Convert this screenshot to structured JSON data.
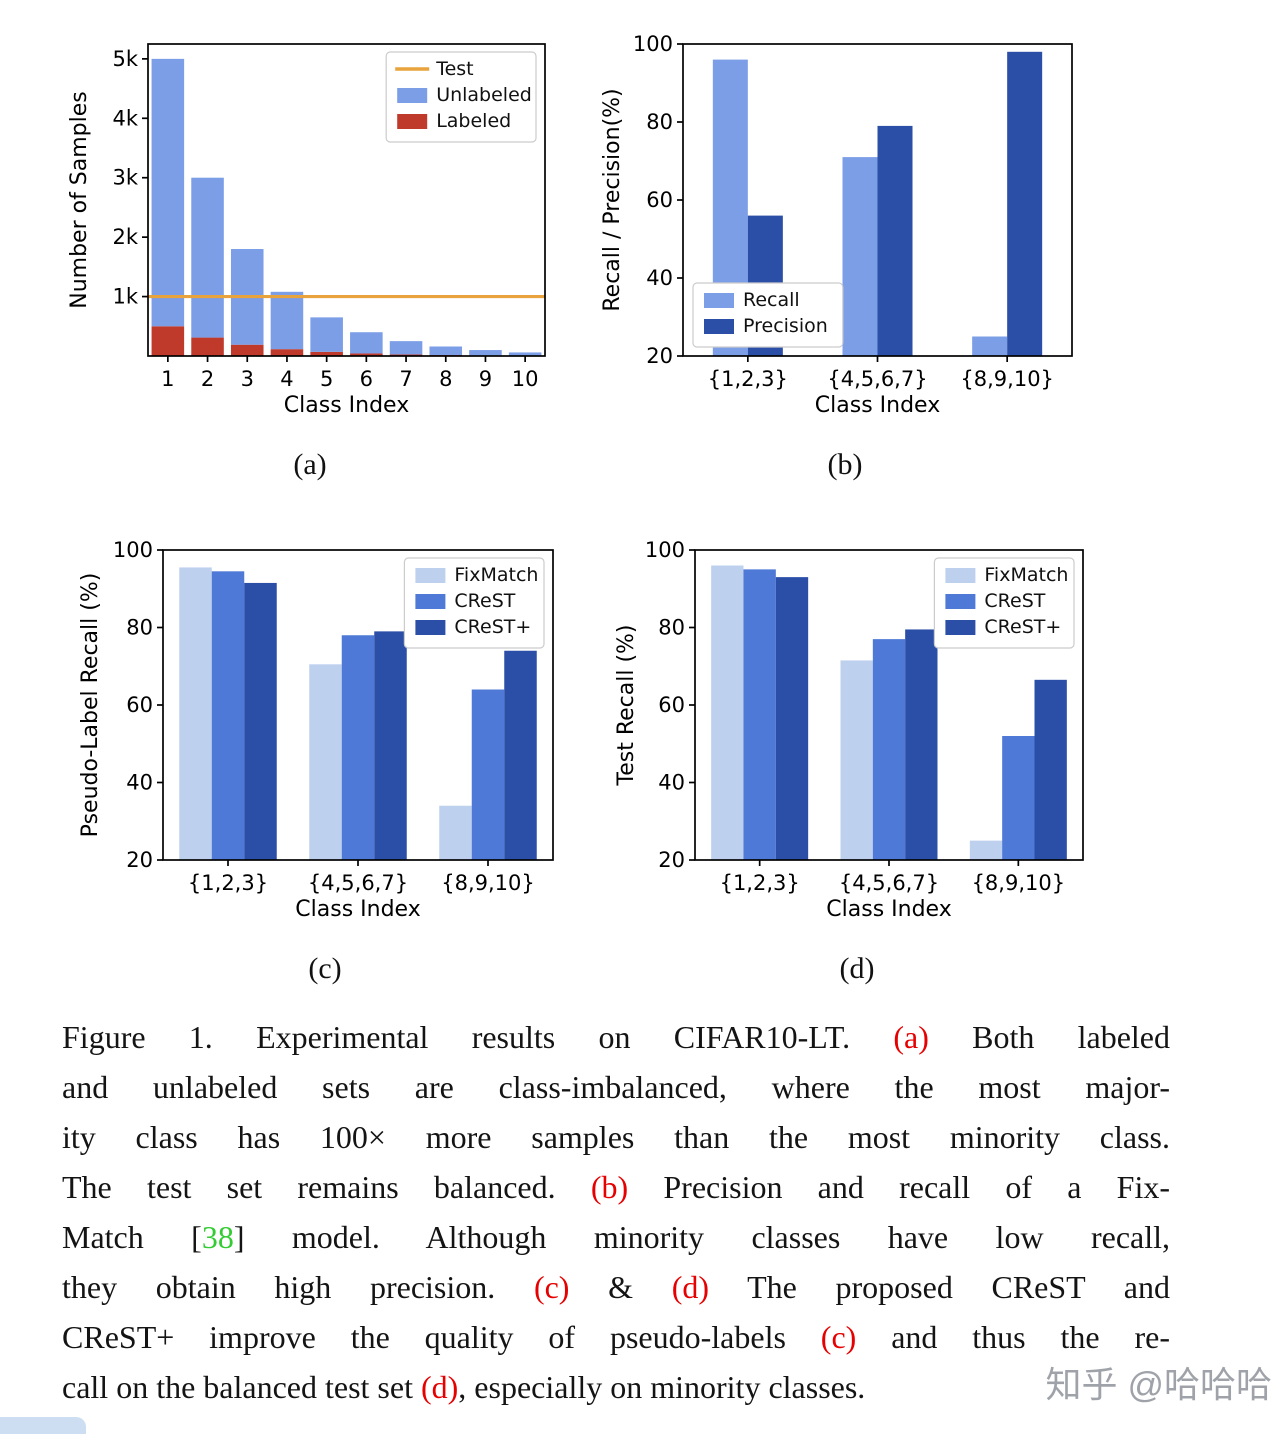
{
  "palette": {
    "pale_blue": "#bdd0ee",
    "light_blue": "#7b9ee7",
    "blue": "#4f79d6",
    "dark_blue": "#2b4fa7",
    "red": "#c03a2b",
    "orange": "#e8a33c",
    "axis": "#000000",
    "legend_border": "#cccccc"
  },
  "chart_data": [
    {
      "id": "a",
      "panel_label": "(a)",
      "type": "bar",
      "bar_mode": "stacked",
      "xlabel": "Class Index",
      "ylabel": "Number of Samples",
      "categories": [
        "1",
        "2",
        "3",
        "4",
        "5",
        "6",
        "7",
        "8",
        "9",
        "10"
      ],
      "ylim": [
        0,
        5250
      ],
      "yticks": [
        {
          "v": 1000,
          "label": "1k"
        },
        {
          "v": 2000,
          "label": "2k"
        },
        {
          "v": 3000,
          "label": "3k"
        },
        {
          "v": 4000,
          "label": "4k"
        },
        {
          "v": 5000,
          "label": "5k"
        }
      ],
      "bar_frac": 0.82,
      "series": [
        {
          "name": "Labeled",
          "color": "red",
          "values": [
            500,
            310,
            190,
            115,
            70,
            43,
            26,
            16,
            10,
            6
          ]
        },
        {
          "name": "Unlabeled",
          "color": "light_blue",
          "values": [
            4500,
            2690,
            1610,
            965,
            580,
            357,
            224,
            144,
            90,
            54
          ]
        }
      ],
      "hline": {
        "name": "Test",
        "color": "orange",
        "value": 1000
      },
      "legend": {
        "pos": "tr",
        "entries": [
          {
            "label": "Test",
            "swatch": "line",
            "color": "orange"
          },
          {
            "label": "Unlabeled",
            "swatch": "rect",
            "color": "light_blue"
          },
          {
            "label": "Labeled",
            "swatch": "rect",
            "color": "red"
          }
        ]
      }
    },
    {
      "id": "b",
      "panel_label": "(b)",
      "type": "bar",
      "bar_mode": "grouped",
      "xlabel": "Class Index",
      "ylabel": "Recall / Precision(%)",
      "categories": [
        "{1,2,3}",
        "{4,5,6,7}",
        "{8,9,10}"
      ],
      "ylim": [
        20,
        100
      ],
      "yticks": [
        {
          "v": 20,
          "label": "20"
        },
        {
          "v": 40,
          "label": "40"
        },
        {
          "v": 60,
          "label": "60"
        },
        {
          "v": 80,
          "label": "80"
        },
        {
          "v": 100,
          "label": "100"
        }
      ],
      "bar_frac": 0.27,
      "series": [
        {
          "name": "Recall",
          "color": "light_blue",
          "values": [
            96,
            71,
            25
          ]
        },
        {
          "name": "Precision",
          "color": "dark_blue",
          "values": [
            56,
            79,
            98
          ]
        }
      ],
      "legend": {
        "pos": "bl",
        "entries": [
          {
            "label": "Recall",
            "swatch": "rect",
            "color": "light_blue"
          },
          {
            "label": "Precision",
            "swatch": "rect",
            "color": "dark_blue"
          }
        ]
      }
    },
    {
      "id": "c",
      "panel_label": "(c)",
      "type": "bar",
      "bar_mode": "grouped",
      "xlabel": "Class Index",
      "ylabel": "Pseudo-Label Recall (%)",
      "categories": [
        "{1,2,3}",
        "{4,5,6,7}",
        "{8,9,10}"
      ],
      "ylim": [
        20,
        100
      ],
      "yticks": [
        {
          "v": 20,
          "label": "20"
        },
        {
          "v": 40,
          "label": "40"
        },
        {
          "v": 60,
          "label": "60"
        },
        {
          "v": 80,
          "label": "80"
        },
        {
          "v": 100,
          "label": "100"
        }
      ],
      "bar_frac": 0.25,
      "series": [
        {
          "name": "FixMatch",
          "color": "pale_blue",
          "values": [
            95.5,
            70.5,
            34
          ]
        },
        {
          "name": "CReST",
          "color": "blue",
          "values": [
            94.5,
            78,
            64
          ]
        },
        {
          "name": "CReST+",
          "color": "dark_blue",
          "values": [
            91.5,
            79,
            74
          ]
        }
      ],
      "legend": {
        "pos": "tr",
        "entries": [
          {
            "label": "FixMatch",
            "swatch": "rect",
            "color": "pale_blue"
          },
          {
            "label": "CReST",
            "swatch": "rect",
            "color": "blue"
          },
          {
            "label": "CReST+",
            "swatch": "rect",
            "color": "dark_blue"
          }
        ]
      }
    },
    {
      "id": "d",
      "panel_label": "(d)",
      "type": "bar",
      "bar_mode": "grouped",
      "xlabel": "Class Index",
      "ylabel": "Test Recall (%)",
      "categories": [
        "{1,2,3}",
        "{4,5,6,7}",
        "{8,9,10}"
      ],
      "ylim": [
        20,
        100
      ],
      "yticks": [
        {
          "v": 20,
          "label": "20"
        },
        {
          "v": 40,
          "label": "40"
        },
        {
          "v": 60,
          "label": "60"
        },
        {
          "v": 80,
          "label": "80"
        },
        {
          "v": 100,
          "label": "100"
        }
      ],
      "bar_frac": 0.25,
      "series": [
        {
          "name": "FixMatch",
          "color": "pale_blue",
          "values": [
            96,
            71.5,
            25
          ]
        },
        {
          "name": "CReST",
          "color": "blue",
          "values": [
            95,
            77,
            52
          ]
        },
        {
          "name": "CReST+",
          "color": "dark_blue",
          "values": [
            93,
            79.5,
            66.5
          ]
        }
      ],
      "legend": {
        "pos": "tr",
        "entries": [
          {
            "label": "FixMatch",
            "swatch": "rect",
            "color": "pale_blue"
          },
          {
            "label": "CReST",
            "swatch": "rect",
            "color": "blue"
          },
          {
            "label": "CReST+",
            "swatch": "rect",
            "color": "dark_blue"
          }
        ]
      }
    }
  ],
  "caption": {
    "colors": {
      "red": "#e60000",
      "green": "#33cc33",
      "default": "#141414"
    },
    "lines": [
      {
        "last": false,
        "segments": [
          {
            "t": "Figure 1. Experimental results on CIFAR10-LT. "
          },
          {
            "t": "(a)",
            "c": "red"
          },
          {
            "t": " Both labeled"
          }
        ]
      },
      {
        "last": false,
        "segments": [
          {
            "t": "and unlabeled sets are class-imbalanced, where the most major-"
          }
        ]
      },
      {
        "last": false,
        "segments": [
          {
            "t": "ity class has 100× more samples than the most minority class."
          }
        ]
      },
      {
        "last": false,
        "segments": [
          {
            "t": "The test set remains balanced. "
          },
          {
            "t": "(b)",
            "c": "red"
          },
          {
            "t": " Precision and recall of a Fix-"
          }
        ]
      },
      {
        "last": false,
        "segments": [
          {
            "t": "Match ["
          },
          {
            "t": "38",
            "c": "green"
          },
          {
            "t": "] model. Although minority classes have low recall,"
          }
        ]
      },
      {
        "last": false,
        "segments": [
          {
            "t": "they obtain high precision. "
          },
          {
            "t": "(c)",
            "c": "red"
          },
          {
            "t": " & "
          },
          {
            "t": "(d)",
            "c": "red"
          },
          {
            "t": " The proposed CReST and"
          }
        ]
      },
      {
        "last": false,
        "segments": [
          {
            "t": "CReST+ improve the quality of pseudo-labels "
          },
          {
            "t": "(c)",
            "c": "red"
          },
          {
            "t": " and thus the re-"
          }
        ]
      },
      {
        "last": true,
        "segments": [
          {
            "t": "call on the balanced test set "
          },
          {
            "t": "(d)",
            "c": "red"
          },
          {
            "t": ", especially on minority classes."
          }
        ]
      }
    ]
  },
  "watermark": {
    "text": "知乎 @哈哈哈"
  }
}
